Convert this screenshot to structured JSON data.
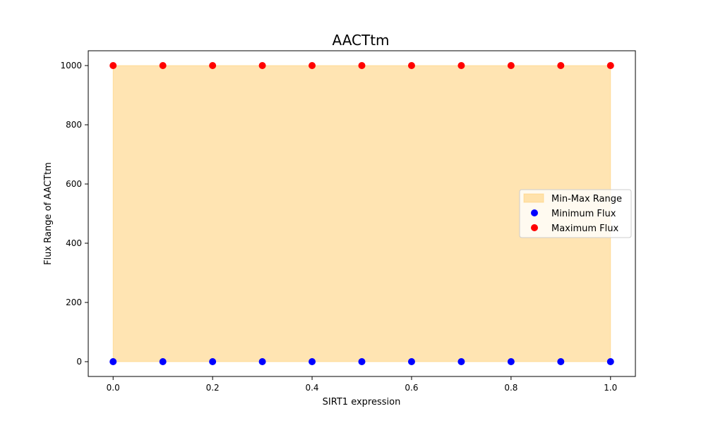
{
  "chart_data": {
    "type": "scatter",
    "title": "AACTtm",
    "xlabel": "SIRT1 expression",
    "ylabel": "Flux Range of AACTtm",
    "x": [
      0.0,
      0.1,
      0.2,
      0.3,
      0.4,
      0.5,
      0.6,
      0.7,
      0.8,
      0.9,
      1.0
    ],
    "xlim": [
      -0.05,
      1.05
    ],
    "ylim": [
      -50,
      1050
    ],
    "xticks": [
      0.0,
      0.2,
      0.4,
      0.6,
      0.8,
      1.0
    ],
    "xtick_labels": [
      "0.0",
      "0.2",
      "0.4",
      "0.6",
      "0.8",
      "1.0"
    ],
    "yticks": [
      0,
      200,
      400,
      600,
      800,
      1000
    ],
    "ytick_labels": [
      "0",
      "200",
      "400",
      "600",
      "800",
      "1000"
    ],
    "grid": false,
    "legend_position": "center-right",
    "range_band": {
      "name": "Min-Max Range",
      "color": "#ffc966",
      "opacity": 0.5
    },
    "series": [
      {
        "name": "Minimum Flux",
        "color": "#0000ff",
        "values": [
          0,
          0,
          0,
          0,
          0,
          0,
          0,
          0,
          0,
          0,
          0
        ]
      },
      {
        "name": "Maximum Flux",
        "color": "#ff0000",
        "values": [
          1000,
          1000,
          1000,
          1000,
          1000,
          1000,
          1000,
          1000,
          1000,
          1000,
          1000
        ]
      }
    ]
  }
}
